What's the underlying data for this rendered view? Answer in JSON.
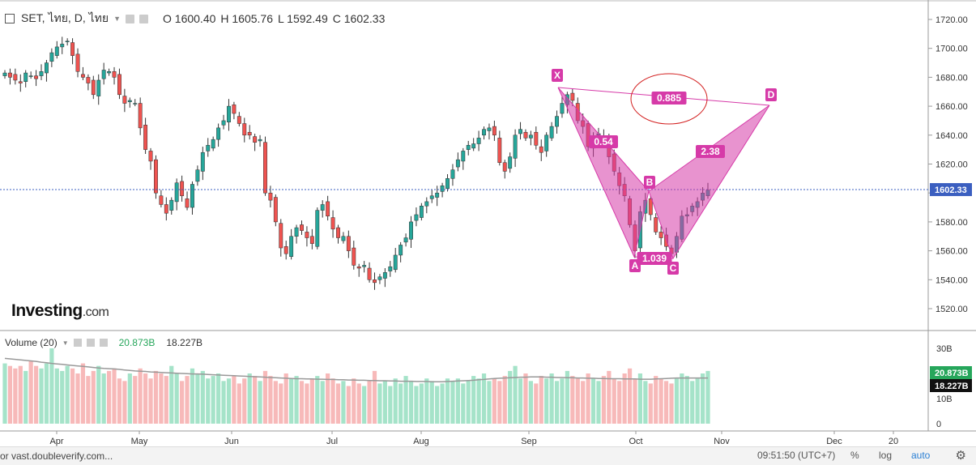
{
  "header": {
    "symbol": "SET, ไทย, D, ไทย",
    "open": "O 1600.40",
    "high": "H 1605.76",
    "low": "L 1592.49",
    "close": "C 1602.33"
  },
  "volume_legend": {
    "label": "Volume (20)",
    "value1": "20.873B",
    "value2": "18.227B"
  },
  "logo": {
    "name": "Investing",
    "suffix": ".com"
  },
  "status_bar": {
    "url_text": "or vast.doubleverify.com...",
    "time": "09:51:50 (UTC+7)",
    "percent": "%",
    "log": "log",
    "auto": "auto"
  },
  "colors": {
    "up": "#26a69a",
    "down": "#ef5350",
    "pattern": "#d63aa8",
    "price_line": "#3b5fc0"
  },
  "chart_data": {
    "type": "candlestick",
    "price_axis": {
      "ticks": [
        1520,
        1540,
        1560,
        1580,
        1600,
        1620,
        1640,
        1660,
        1680,
        1700,
        1720
      ],
      "tick_labels": [
        "1520.00",
        "1540.00",
        "1560.00",
        "1580.00",
        "1600.00",
        "1620.00",
        "1640.00",
        "1660.00",
        "1680.00",
        "1700.00",
        "1720.00"
      ],
      "current": "1602.33"
    },
    "volume_axis": {
      "ticks": [
        0,
        10,
        20,
        30
      ],
      "tick_labels": [
        "0",
        "10B",
        "20B",
        "30B"
      ],
      "markers": [
        "20.873B",
        "18.227B"
      ]
    },
    "x_axis": {
      "labels": [
        "Apr",
        "May",
        "Jun",
        "Jul",
        "Aug",
        "Sep",
        "Oct",
        "Nov",
        "Dec",
        "20"
      ]
    },
    "pattern": {
      "points": [
        {
          "label": "X",
          "price": 1672
        },
        {
          "label": "A",
          "price": 1557
        },
        {
          "label": "B",
          "price": 1601
        },
        {
          "label": "C",
          "price": 1554
        },
        {
          "label": "D",
          "price": 1660
        }
      ],
      "ratios": [
        "0.885",
        "0.54",
        "1.039",
        "2.38"
      ]
    },
    "closes": [
      1683,
      1680,
      1678,
      1676,
      1683,
      1681,
      1679,
      1684,
      1690,
      1697,
      1701,
      1703,
      1705,
      1695,
      1684,
      1680,
      1676,
      1668,
      1678,
      1685,
      1684,
      1680,
      1668,
      1662,
      1664,
      1662,
      1645,
      1630,
      1622,
      1600,
      1592,
      1586,
      1595,
      1607,
      1598,
      1590,
      1606,
      1616,
      1628,
      1633,
      1637,
      1645,
      1650,
      1660,
      1655,
      1648,
      1640,
      1640,
      1635,
      1637,
      1600,
      1595,
      1580,
      1562,
      1558,
      1570,
      1576,
      1574,
      1569,
      1565,
      1588,
      1592,
      1584,
      1575,
      1569,
      1570,
      1560,
      1550,
      1548,
      1550,
      1540,
      1538,
      1542,
      1545,
      1549,
      1557,
      1564,
      1569,
      1580,
      1585,
      1591,
      1594,
      1598,
      1600,
      1605,
      1610,
      1616,
      1623,
      1629,
      1633,
      1634,
      1638,
      1644,
      1645,
      1640,
      1621,
      1615,
      1625,
      1640,
      1644,
      1638,
      1640,
      1633,
      1628,
      1640,
      1646,
      1653,
      1662,
      1668,
      1664,
      1650,
      1646,
      1632,
      1639,
      1641,
      1639,
      1625,
      1615,
      1605,
      1598,
      1578,
      1560,
      1587,
      1595,
      1585,
      1573,
      1569,
      1563,
      1558,
      1570,
      1584,
      1585,
      1591,
      1594,
      1600,
      1602
    ],
    "volumes": [
      24,
      23,
      22,
      23,
      21,
      25,
      23,
      22,
      24,
      30,
      22,
      21,
      23,
      22,
      20,
      24,
      19,
      21,
      23,
      20,
      21,
      22,
      18,
      17,
      20,
      19,
      22,
      20,
      18,
      21,
      20,
      19,
      23,
      20,
      17,
      19,
      22,
      20,
      21,
      18,
      19,
      20,
      17,
      18,
      19,
      16,
      18,
      20,
      19,
      17,
      21,
      19,
      17,
      16,
      20,
      18,
      19,
      17,
      16,
      18,
      19,
      17,
      20,
      18,
      16,
      17,
      15,
      18,
      16,
      15,
      17,
      21,
      16,
      17,
      15,
      18,
      16,
      19,
      17,
      15,
      16,
      18,
      17,
      15,
      16,
      18,
      17,
      18,
      16,
      17,
      19,
      18,
      20,
      17,
      18,
      17,
      19,
      21,
      23,
      18,
      20,
      17,
      16,
      19,
      18,
      20,
      17,
      18,
      21,
      19,
      18,
      17,
      20,
      18,
      17,
      19,
      21,
      18,
      17,
      20,
      22,
      18,
      20,
      17,
      16,
      19,
      18,
      17,
      16,
      18,
      20,
      19,
      17,
      18,
      20,
      21
    ],
    "vol_avg": [
      26,
      25.8,
      25.6,
      25.4,
      25.2,
      25,
      24.8,
      24.5,
      24.3,
      24,
      23.8,
      23.6,
      23.4,
      23.2,
      23,
      22.8,
      22.6,
      22.4,
      22.2,
      22,
      21.9,
      21.8,
      21.6,
      21.4,
      21.2,
      21,
      20.9,
      20.8,
      20.6,
      20.5,
      20.4,
      20.3,
      20.2,
      20.1,
      20,
      19.9,
      19.8,
      19.8,
      19.7,
      19.6,
      19.5,
      19.4,
      19.3,
      19.2,
      19.1,
      19,
      18.9,
      18.8,
      18.7,
      18.6,
      18.5,
      18.4,
      18.3,
      18.2,
      18.1,
      18,
      17.9,
      17.9,
      17.8,
      17.8,
      17.7,
      17.7,
      17.6,
      17.6,
      17.5,
      17.5,
      17.4,
      17.4,
      17.3,
      17.3,
      17.2,
      17.2,
      17.1,
      17.1,
      17,
      17,
      16.9,
      16.9,
      16.9,
      16.8,
      16.8,
      16.8,
      16.7,
      16.7,
      16.7,
      16.8,
      16.9,
      17,
      17.1,
      17.2,
      17.3,
      17.5,
      17.6,
      17.8,
      18,
      18.1,
      18.2,
      18.3,
      18.4,
      18.5,
      18.5,
      18.6,
      18.6,
      18.6,
      18.5,
      18.5,
      18.4,
      18.4,
      18.3,
      18.3,
      18.2,
      18.2,
      18.1,
      18.1,
      18,
      18,
      17.9,
      17.9,
      17.9,
      17.8,
      17.8,
      17.8,
      17.7,
      17.7,
      17.7,
      17.8,
      17.9,
      18,
      18.1,
      18.2,
      18.2,
      18.2,
      18.2,
      18.2,
      18.2,
      18.2
    ]
  }
}
